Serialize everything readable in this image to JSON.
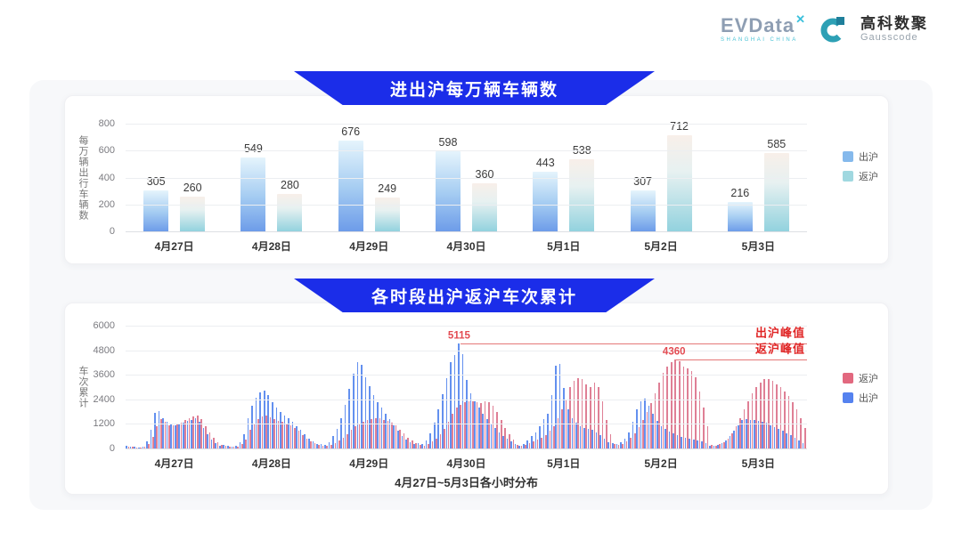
{
  "header": {
    "evdata": {
      "text": "EVData",
      "x_mark": "✕",
      "subtext": "SHANGHAI CHINA"
    },
    "gausscode": {
      "cn": "高科数聚",
      "en": "Gausscode"
    }
  },
  "colors": {
    "banner_blue": "#1b2de9",
    "chart1_out_bar_bottom": "#6d9ce9",
    "chart1_ret_bar_bottom": "#92d2de",
    "chart2_out_bar": "#6390ef",
    "chart2_ret_bar": "#df7f95",
    "peak_red": "#e02626"
  },
  "chart1": {
    "title": "进出沪每万辆车辆数",
    "y_label": "每万辆出行车辆数",
    "legend": [
      {
        "label": "出沪",
        "color": "#85b9ec"
      },
      {
        "label": "返沪",
        "color": "#a0d8e0"
      }
    ]
  },
  "chart2": {
    "title": "各时段出沪返沪车次累计",
    "y_label": "车次累计",
    "subtitle": "4月27日~5月3日各小时分布",
    "legend": [
      {
        "label": "返沪",
        "color": "#e2687f"
      },
      {
        "label": "出沪",
        "color": "#5582ef"
      }
    ]
  },
  "chart_data": [
    {
      "type": "bar",
      "title": "进出沪每万辆车辆数",
      "ylabel": "每万辆出行车辆数",
      "categories": [
        "4月27日",
        "4月28日",
        "4月29日",
        "4月30日",
        "5月1日",
        "5月2日",
        "5月3日"
      ],
      "series": [
        {
          "name": "出沪",
          "values": [
            305,
            549,
            676,
            598,
            443,
            307,
            216
          ]
        },
        {
          "name": "返沪",
          "values": [
            260,
            280,
            249,
            360,
            538,
            712,
            585
          ]
        }
      ],
      "ylim": [
        0,
        800
      ],
      "y_ticks": [
        800,
        600,
        400,
        200,
        0
      ],
      "grid": true,
      "legend_position": "right"
    },
    {
      "type": "bar",
      "title": "各时段出沪返沪车次累计",
      "xlabel": "4月27日~5月3日各小时分布",
      "ylabel": "车次累计",
      "categories": [
        "4月27日",
        "4月28日",
        "4月29日",
        "4月30日",
        "5月1日",
        "5月2日",
        "5月3日"
      ],
      "x_unit": "hour 0-23 of each day, estimated from pixels",
      "series": [
        {
          "name": "出沪",
          "days": [
            [
              120,
              90,
              70,
              60,
              90,
              350,
              900,
              1750,
              1820,
              1500,
              1300,
              1180,
              1150,
              1200,
              1280,
              1350,
              1400,
              1480,
              1300,
              1000,
              700,
              450,
              260,
              140
            ],
            [
              160,
              120,
              100,
              120,
              300,
              700,
              1500,
              2100,
              2500,
              2750,
              2820,
              2600,
              2250,
              2000,
              1800,
              1600,
              1480,
              1300,
              1100,
              900,
              700,
              500,
              350,
              220
            ],
            [
              220,
              160,
              300,
              600,
              950,
              1500,
              2150,
              2900,
              3650,
              4200,
              4080,
              3500,
              3050,
              2600,
              2280,
              2000,
              1700,
              1420,
              1150,
              850,
              620,
              430,
              300,
              200
            ],
            [
              260,
              200,
              380,
              750,
              1250,
              1900,
              2650,
              3450,
              4200,
              4550,
              5115,
              4600,
              3350,
              2700,
              2300,
              2000,
              1700,
              1420,
              1200,
              1000,
              800,
              620,
              460,
              350
            ],
            [
              200,
              150,
              200,
              380,
              600,
              800,
              1100,
              1450,
              1700,
              2600,
              4050,
              4150,
              2950,
              1900,
              1500,
              1250,
              1100,
              1000,
              950,
              900,
              800,
              650,
              480,
              300
            ],
            [
              260,
              200,
              300,
              500,
              800,
              1300,
              1900,
              2300,
              2450,
              2100,
              1700,
              1350,
              1100,
              950,
              820,
              720,
              640,
              580,
              520,
              470,
              420,
              380,
              330,
              280
            ],
            [
              150,
              120,
              160,
              260,
              400,
              600,
              850,
              1150,
              1400,
              1450,
              1400,
              1380,
              1350,
              1300,
              1250,
              1150,
              1050,
              950,
              850,
              750,
              650,
              520,
              380,
              240
            ]
          ]
        },
        {
          "name": "返沪",
          "days": [
            [
              100,
              80,
              60,
              50,
              80,
              220,
              550,
              1100,
              1450,
              1320,
              1150,
              1120,
              1180,
              1250,
              1380,
              1480,
              1550,
              1600,
              1420,
              1100,
              800,
              520,
              300,
              160
            ],
            [
              130,
              100,
              90,
              100,
              220,
              450,
              900,
              1200,
              1450,
              1580,
              1620,
              1520,
              1420,
              1350,
              1300,
              1220,
              1120,
              1000,
              850,
              650,
              480,
              350,
              250,
              160
            ],
            [
              140,
              110,
              160,
              260,
              380,
              520,
              700,
              900,
              1080,
              1200,
              1300,
              1380,
              1450,
              1500,
              1460,
              1400,
              1350,
              1280,
              1120,
              920,
              720,
              520,
              380,
              260
            ],
            [
              160,
              130,
              220,
              350,
              500,
              700,
              950,
              1300,
              1700,
              2000,
              2150,
              2250,
              2320,
              2300,
              2250,
              2200,
              2300,
              2250,
              2100,
              1800,
              1400,
              1000,
              700,
              420
            ],
            [
              160,
              130,
              160,
              250,
              330,
              420,
              520,
              650,
              850,
              1100,
              1500,
              1900,
              2400,
              3000,
              3300,
              3450,
              3400,
              3150,
              3000,
              3200,
              3000,
              2300,
              1400,
              700
            ],
            [
              200,
              160,
              220,
              350,
              520,
              750,
              1050,
              1400,
              1800,
              2200,
              2700,
              3200,
              3700,
              4000,
              4200,
              4360,
              4250,
              4000,
              3900,
              3800,
              3500,
              2800,
              2000,
              1100
            ],
            [
              180,
              140,
              200,
              320,
              500,
              750,
              1100,
              1500,
              1900,
              2300,
              2700,
              3000,
              3200,
              3400,
              3380,
              3300,
              3150,
              3000,
              2800,
              2550,
              2250,
              1900,
              1500,
              1000
            ]
          ]
        }
      ],
      "ylim": [
        0,
        6000
      ],
      "y_ticks": [
        6000,
        4800,
        3600,
        2400,
        1200,
        0
      ],
      "grid": true,
      "legend_position": "right",
      "annotations": [
        {
          "label": "出沪峰值",
          "series": "出沪",
          "value": 5115
        },
        {
          "label": "返沪峰值",
          "series": "返沪",
          "value": 4360
        }
      ]
    }
  ]
}
